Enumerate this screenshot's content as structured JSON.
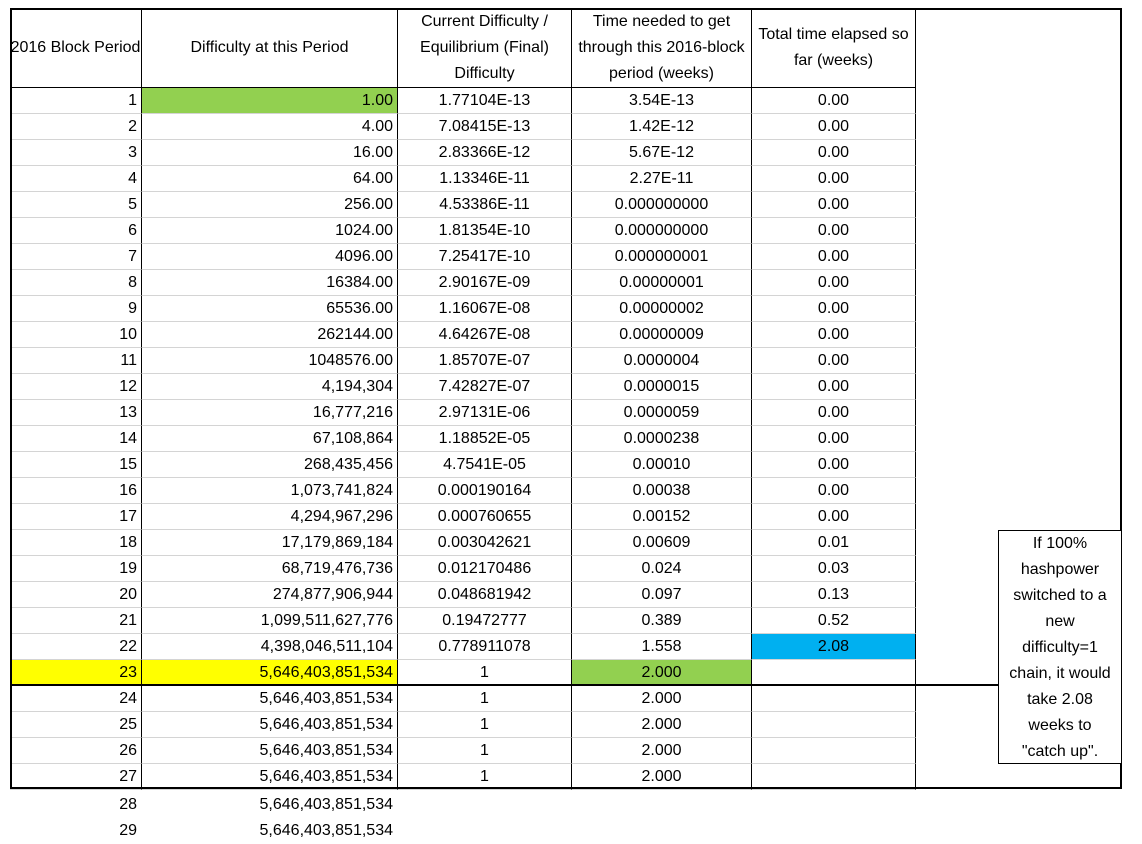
{
  "headers": {
    "period": "2016 Block Period",
    "difficulty": "Difficulty at this Period",
    "ratio": "Current Difficulty / Equilibrium (Final) Difficulty",
    "time_needed": "Time needed to get through this 2016-block period (weeks)",
    "total_elapsed": "Total time elapsed so far (weeks)"
  },
  "rows": [
    {
      "period": "1",
      "difficulty": "1.00",
      "ratio": "1.77104E-13",
      "time": "3.54E-13",
      "total": "0.00"
    },
    {
      "period": "2",
      "difficulty": "4.00",
      "ratio": "7.08415E-13",
      "time": "1.42E-12",
      "total": "0.00"
    },
    {
      "period": "3",
      "difficulty": "16.00",
      "ratio": "2.83366E-12",
      "time": "5.67E-12",
      "total": "0.00"
    },
    {
      "period": "4",
      "difficulty": "64.00",
      "ratio": "1.13346E-11",
      "time": "2.27E-11",
      "total": "0.00"
    },
    {
      "period": "5",
      "difficulty": "256.00",
      "ratio": "4.53386E-11",
      "time": "0.000000000",
      "total": "0.00"
    },
    {
      "period": "6",
      "difficulty": "1024.00",
      "ratio": "1.81354E-10",
      "time": "0.000000000",
      "total": "0.00"
    },
    {
      "period": "7",
      "difficulty": "4096.00",
      "ratio": "7.25417E-10",
      "time": "0.000000001",
      "total": "0.00"
    },
    {
      "period": "8",
      "difficulty": "16384.00",
      "ratio": "2.90167E-09",
      "time": "0.00000001",
      "total": "0.00"
    },
    {
      "period": "9",
      "difficulty": "65536.00",
      "ratio": "1.16067E-08",
      "time": "0.00000002",
      "total": "0.00"
    },
    {
      "period": "10",
      "difficulty": "262144.00",
      "ratio": "4.64267E-08",
      "time": "0.00000009",
      "total": "0.00"
    },
    {
      "period": "11",
      "difficulty": "1048576.00",
      "ratio": "1.85707E-07",
      "time": "0.0000004",
      "total": "0.00"
    },
    {
      "period": "12",
      "difficulty": "4,194,304",
      "ratio": "7.42827E-07",
      "time": "0.0000015",
      "total": "0.00"
    },
    {
      "period": "13",
      "difficulty": "16,777,216",
      "ratio": "2.97131E-06",
      "time": "0.0000059",
      "total": "0.00"
    },
    {
      "period": "14",
      "difficulty": "67,108,864",
      "ratio": "1.18852E-05",
      "time": "0.0000238",
      "total": "0.00"
    },
    {
      "period": "15",
      "difficulty": "268,435,456",
      "ratio": "4.7541E-05",
      "time": "0.00010",
      "total": "0.00"
    },
    {
      "period": "16",
      "difficulty": "1,073,741,824",
      "ratio": "0.000190164",
      "time": "0.00038",
      "total": "0.00"
    },
    {
      "period": "17",
      "difficulty": "4,294,967,296",
      "ratio": "0.000760655",
      "time": "0.00152",
      "total": "0.00"
    },
    {
      "period": "18",
      "difficulty": "17,179,869,184",
      "ratio": "0.003042621",
      "time": "0.00609",
      "total": "0.01"
    },
    {
      "period": "19",
      "difficulty": "68,719,476,736",
      "ratio": "0.012170486",
      "time": "0.024",
      "total": "0.03"
    },
    {
      "period": "20",
      "difficulty": "274,877,906,944",
      "ratio": "0.048681942",
      "time": "0.097",
      "total": "0.13"
    },
    {
      "period": "21",
      "difficulty": "1,099,511,627,776",
      "ratio": "0.19472777",
      "time": "0.389",
      "total": "0.52"
    },
    {
      "period": "22",
      "difficulty": "4,398,046,511,104",
      "ratio": "0.778911078",
      "time": "1.558",
      "total": "2.08"
    },
    {
      "period": "23",
      "difficulty": "5,646,403,851,534",
      "ratio": "1",
      "time": "2.000",
      "total": ""
    },
    {
      "period": "24",
      "difficulty": "5,646,403,851,534",
      "ratio": "1",
      "time": "2.000",
      "total": ""
    },
    {
      "period": "25",
      "difficulty": "5,646,403,851,534",
      "ratio": "1",
      "time": "2.000",
      "total": ""
    },
    {
      "period": "26",
      "difficulty": "5,646,403,851,534",
      "ratio": "1",
      "time": "2.000",
      "total": ""
    },
    {
      "period": "27",
      "difficulty": "5,646,403,851,534",
      "ratio": "1",
      "time": "2.000",
      "total": ""
    }
  ],
  "extra_rows": [
    {
      "period": "28",
      "difficulty": "5,646,403,851,534"
    },
    {
      "period": "29",
      "difficulty": "5,646,403,851,534"
    }
  ],
  "highlight_colors": {
    "green": "#92d050",
    "yellow": "#ffff00",
    "blue": "#00b0f0"
  },
  "highlights": {
    "row1_difficulty": "green",
    "row22_total": "blue",
    "row23_period": "yellow",
    "row23_difficulty": "yellow",
    "row23_time": "green"
  },
  "note_lines": [
    "If 100%",
    "hashpower",
    "switched to a",
    "new",
    "difficulty=1",
    "chain, it would",
    "take 2.08",
    "weeks to",
    "\"catch up\"."
  ]
}
